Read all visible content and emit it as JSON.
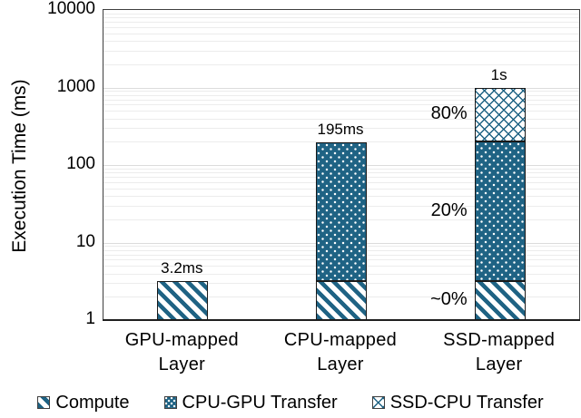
{
  "figure": {
    "background": "#ffffff"
  },
  "chart_data": {
    "type": "bar",
    "stacked": true,
    "y_scale": "log10",
    "title": "",
    "xlabel": "",
    "ylabel": "Execution Time (ms)",
    "ylim": [
      1,
      10000
    ],
    "y_ticks": [
      1,
      10,
      100,
      1000,
      10000
    ],
    "categories": [
      "GPU-mapped Layer",
      "CPU-mapped Layer",
      "SSD-mapped Layer"
    ],
    "series": [
      {
        "name": "Compute",
        "pattern": "diagonal-stripe",
        "values": [
          3.2,
          3.2,
          3.2
        ]
      },
      {
        "name": "CPU-GPU Transfer",
        "pattern": "dots",
        "values": [
          0,
          191.8,
          196.8
        ]
      },
      {
        "name": "SSD-CPU Transfer",
        "pattern": "diagonal-brick",
        "values": [
          0,
          0,
          800
        ]
      }
    ],
    "bar_total_labels": [
      "3.2ms",
      "195ms",
      "1s"
    ],
    "segment_percent_annotations": {
      "category_index": 2,
      "labels": [
        "~0%",
        "20%",
        "80%"
      ]
    },
    "legend_position": "bottom",
    "grid": "horizontal-log-minor",
    "colors": {
      "pattern_ink": "#1F6384",
      "outline": "#1a1a1a",
      "gridline_minor": "#ececec",
      "gridline_major": "#dcdcdc",
      "text": "#000000"
    }
  }
}
